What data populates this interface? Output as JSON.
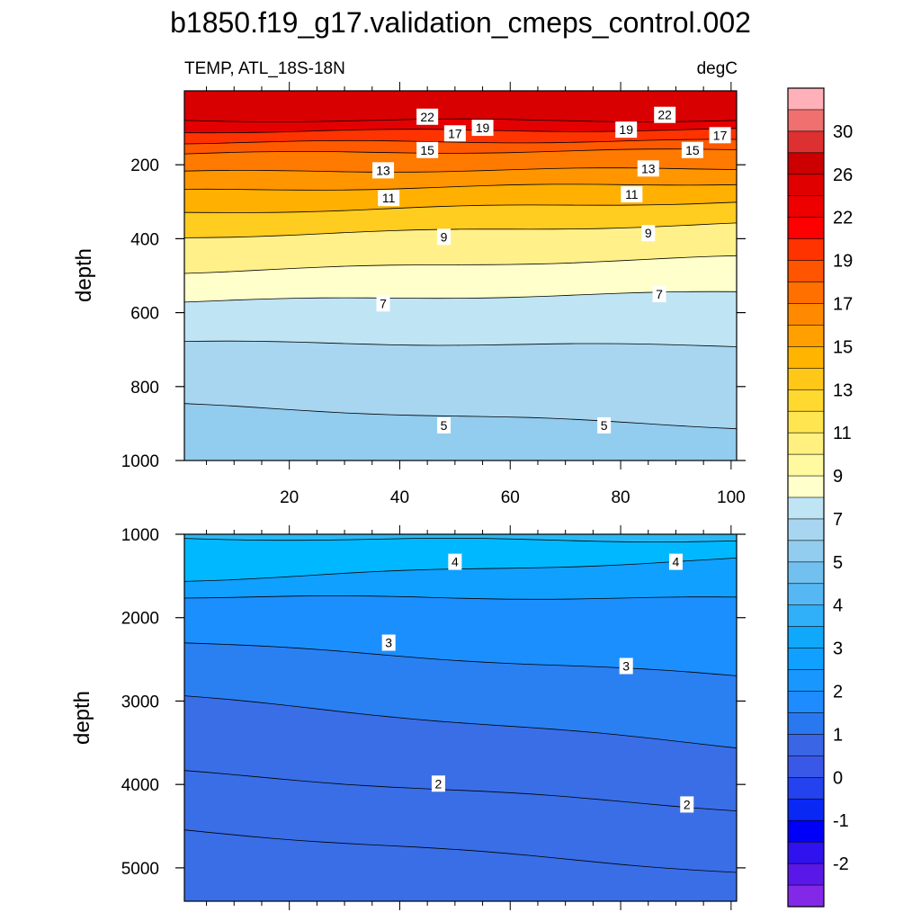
{
  "chart_data": [
    {
      "type": "contour",
      "title": "b1850.f19_g17.validation_cmeps_control.002",
      "left_subtitle": "TEMP, ATL_18S-18N",
      "right_subtitle": "degC",
      "ylabel": "depth",
      "x_ticks": [
        "20",
        "40",
        "60",
        "80",
        "100"
      ],
      "y_ticks": [
        "200",
        "400",
        "600",
        "800",
        "1000"
      ],
      "xlim": [
        1,
        101
      ],
      "ylim": [
        0,
        1000
      ],
      "y_reversed": true,
      "isotherm_depths": [
        {
          "t": 22,
          "left": 80,
          "right": 80
        },
        {
          "t": 19,
          "left": 110,
          "right": 105
        },
        {
          "t": 17,
          "left": 140,
          "right": 135
        },
        {
          "t": 15,
          "left": 170,
          "right": 160
        },
        {
          "t": 13,
          "left": 220,
          "right": 210
        },
        {
          "t": 11,
          "left": 270,
          "right": 250
        },
        {
          "t": 10,
          "left": 330,
          "right": 300
        },
        {
          "t": 9,
          "left": 395,
          "right": 360
        },
        {
          "t": 8,
          "left": 490,
          "right": 450
        },
        {
          "t": 7,
          "left": 570,
          "right": 545
        },
        {
          "t": 6,
          "left": 680,
          "right": 690
        },
        {
          "t": 5,
          "left": 850,
          "right": 910
        }
      ],
      "contour_labels": [
        {
          "text": "22",
          "x": 45,
          "depth": 70
        },
        {
          "text": "17",
          "x": 50,
          "depth": 115
        },
        {
          "text": "19",
          "x": 55,
          "depth": 100
        },
        {
          "text": "19",
          "x": 81,
          "depth": 105
        },
        {
          "text": "22",
          "x": 88,
          "depth": 65
        },
        {
          "text": "17",
          "x": 98,
          "depth": 120
        },
        {
          "text": "15",
          "x": 45,
          "depth": 160
        },
        {
          "text": "15",
          "x": 93,
          "depth": 160
        },
        {
          "text": "13",
          "x": 37,
          "depth": 215
        },
        {
          "text": "13",
          "x": 85,
          "depth": 210
        },
        {
          "text": "11",
          "x": 38,
          "depth": 290
        },
        {
          "text": "11",
          "x": 82,
          "depth": 280
        },
        {
          "text": "9",
          "x": 48,
          "depth": 395
        },
        {
          "text": "9",
          "x": 85,
          "depth": 385
        },
        {
          "text": "7",
          "x": 37,
          "depth": 575
        },
        {
          "text": "7",
          "x": 87,
          "depth": 550
        },
        {
          "text": "5",
          "x": 48,
          "depth": 905
        },
        {
          "text": "5",
          "x": 77,
          "depth": 905
        }
      ]
    },
    {
      "type": "contour",
      "ylabel": "depth",
      "y_ticks": [
        "1000",
        "2000",
        "3000",
        "4000",
        "5000"
      ],
      "xlim": [
        1,
        101
      ],
      "ylim": [
        1000,
        5400
      ],
      "y_reversed": true,
      "isotherm_depths": [
        {
          "t": 4.5,
          "left": 1050,
          "right": 1080
        },
        {
          "t": 4,
          "left": 1550,
          "right": 1300
        },
        {
          "t": 3.5,
          "left": 1750,
          "right": 1770
        },
        {
          "t": 3,
          "left": 2300,
          "right": 2700
        },
        {
          "t": 2.5,
          "left": 2950,
          "right": 3550
        },
        {
          "t": 2,
          "left": 3850,
          "right": 4300
        },
        {
          "t": 1.5,
          "left": 4550,
          "right": 5050
        }
      ],
      "contour_labels": [
        {
          "text": "4",
          "x": 50,
          "depth": 1330
        },
        {
          "text": "4",
          "x": 90,
          "depth": 1330
        },
        {
          "text": "3",
          "x": 38,
          "depth": 2300
        },
        {
          "text": "3",
          "x": 81,
          "depth": 2580
        },
        {
          "text": "2",
          "x": 47,
          "depth": 3990
        },
        {
          "text": "2",
          "x": 92,
          "depth": 4240
        }
      ]
    }
  ],
  "colorbar": {
    "labels": [
      "30",
      "26",
      "22",
      "19",
      "17",
      "15",
      "13",
      "11",
      "9",
      "7",
      "5",
      "4",
      "3",
      "2",
      "1",
      "0",
      "-1",
      "-2"
    ],
    "colors": [
      "#ffb0b8",
      "#f07070",
      "#dd3030",
      "#cc0000",
      "#e00000",
      "#ee0000",
      "#ff0000",
      "#ff3300",
      "#ff5500",
      "#ff7000",
      "#ff8a00",
      "#ffa000",
      "#ffb400",
      "#ffc818",
      "#ffd830",
      "#ffe650",
      "#fff080",
      "#fffaa0",
      "#ffffcc",
      "#bfe4f4",
      "#a8d6f0",
      "#92ccee",
      "#72c0f0",
      "#55b8f4",
      "#30b0f8",
      "#10a8fa",
      "#10a0ff",
      "#1898ff",
      "#1e8cff",
      "#2a78f0",
      "#3a66e6",
      "#3a58e8",
      "#2442ee",
      "#0a28f4",
      "#0000f8",
      "#3012ee",
      "#5a18e8",
      "#8428e8"
    ]
  },
  "colors": {
    "lower_bands": [
      "#2ab8f5",
      "#00b8ff",
      "#10a0ff",
      "#1c8fff",
      "#2a80f0",
      "#3a6ee6"
    ]
  }
}
